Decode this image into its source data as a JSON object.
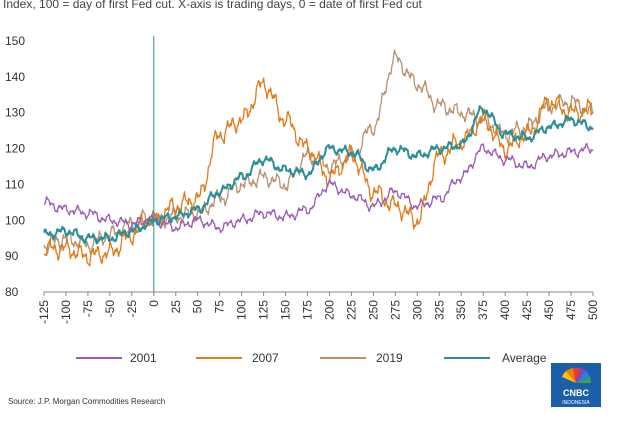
{
  "chart_data": {
    "type": "line",
    "subtitle": "Index, 100 = day of first Fed cut. X-axis is trading days, 0 = date of first Fed cut",
    "source": "Source: J.P. Morgan Commodities Research",
    "x_ticks": [
      "-125",
      "-100",
      "-75",
      "-50",
      "-25",
      "0",
      "25",
      "50",
      "75",
      "100",
      "125",
      "150",
      "175",
      "200",
      "225",
      "250",
      "275",
      "300",
      "325",
      "350",
      "375",
      "400",
      "425",
      "450",
      "475",
      "500"
    ],
    "y_ticks": [
      "150",
      "140",
      "130",
      "120",
      "110",
      "100",
      "90",
      "80"
    ],
    "xlim": [
      -125,
      500
    ],
    "ylim": [
      80,
      150
    ],
    "vline_x": 0,
    "colors": {
      "2001": "#9b59b6",
      "2007": "#e07b1a",
      "2019": "#b8916e",
      "Average": "#2b8f9a"
    },
    "series": [
      {
        "name": "2001",
        "x": [
          -125,
          -100,
          -75,
          -50,
          -25,
          -5,
          0,
          25,
          50,
          75,
          100,
          125,
          150,
          175,
          200,
          225,
          250,
          275,
          300,
          325,
          350,
          375,
          400,
          425,
          450,
          475,
          500
        ],
        "values": [
          105,
          103,
          102,
          100,
          99,
          100,
          100,
          98,
          100,
          98,
          100,
          102,
          101,
          103,
          110,
          107,
          104,
          108,
          104,
          106,
          112,
          120,
          117,
          115,
          118,
          119,
          120
        ]
      },
      {
        "name": "2007",
        "x": [
          -125,
          -100,
          -75,
          -50,
          -25,
          -5,
          0,
          25,
          50,
          75,
          100,
          125,
          150,
          175,
          200,
          225,
          250,
          275,
          300,
          325,
          350,
          375,
          400,
          425,
          450,
          475,
          500
        ],
        "values": [
          92,
          92,
          90,
          91,
          96,
          101,
          100,
          104,
          106,
          124,
          128,
          138,
          128,
          120,
          112,
          118,
          108,
          104,
          100,
          118,
          122,
          128,
          120,
          124,
          133,
          130,
          131
        ]
      },
      {
        "name": "2019",
        "x": [
          -125,
          -100,
          -75,
          -50,
          -25,
          -5,
          0,
          25,
          50,
          75,
          100,
          125,
          150,
          175,
          200,
          225,
          250,
          275,
          300,
          325,
          350,
          375,
          400,
          425,
          450,
          475,
          500
        ],
        "values": [
          93,
          95,
          93,
          96,
          99,
          101,
          100,
          101,
          102,
          106,
          110,
          112,
          110,
          118,
          115,
          118,
          126,
          145,
          138,
          132,
          130,
          128,
          124,
          126,
          132,
          133,
          130
        ]
      },
      {
        "name": "Average",
        "x": [
          -125,
          -100,
          -75,
          -50,
          -25,
          -5,
          0,
          25,
          50,
          75,
          100,
          125,
          150,
          175,
          200,
          225,
          250,
          275,
          300,
          325,
          350,
          375,
          400,
          425,
          450,
          475,
          500
        ],
        "values": [
          96,
          97,
          95,
          95,
          97,
          99,
          100,
          101,
          103,
          108,
          112,
          117,
          114,
          113,
          120,
          119,
          114,
          120,
          118,
          120,
          121,
          131,
          124,
          123,
          126,
          128,
          126
        ]
      }
    ]
  },
  "legend": [
    {
      "label": "2001",
      "key": "2001"
    },
    {
      "label": "2007",
      "key": "2007"
    },
    {
      "label": "2019",
      "key": "2019"
    },
    {
      "label": "Average",
      "key": "Average"
    }
  ],
  "logo": {
    "line1": "CNBC",
    "line2": "INDONESIA"
  }
}
